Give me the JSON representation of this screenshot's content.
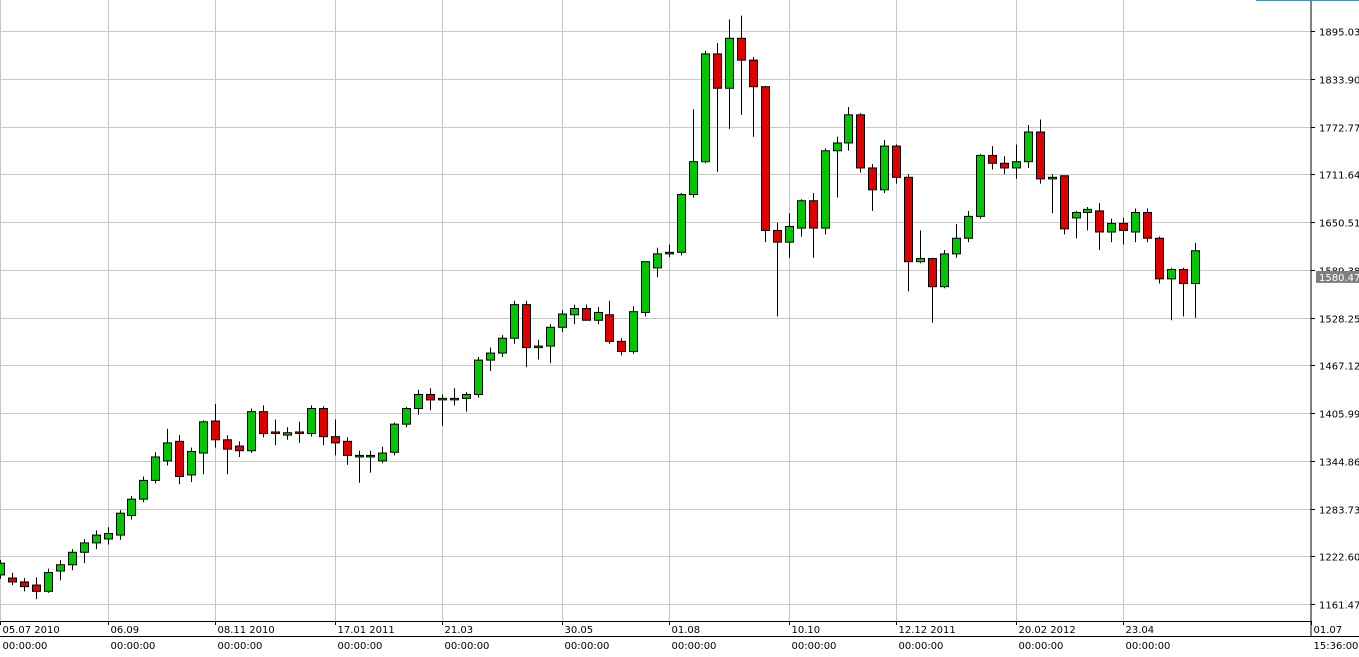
{
  "chart_data": {
    "type": "candlestick",
    "title": "",
    "xlabel": "",
    "ylabel": "",
    "ylim": [
      1140,
      1935
    ],
    "grid": true,
    "colors": {
      "up": "#00c800",
      "down": "#e00000",
      "wick": "#000000",
      "grid": "#c8c8c8",
      "badge": "#808080"
    },
    "current_price": "1580.47",
    "y_ticks": [
      {
        "value": 1161.47,
        "label": "1161.47"
      },
      {
        "value": 1222.6,
        "label": "1222.60"
      },
      {
        "value": 1283.73,
        "label": "1283.73"
      },
      {
        "value": 1344.86,
        "label": "1344.86"
      },
      {
        "value": 1405.99,
        "label": "1405.99"
      },
      {
        "value": 1467.12,
        "label": "1467.12"
      },
      {
        "value": 1528.25,
        "label": "1528.25"
      },
      {
        "value": 1589.38,
        "label": "1589.38"
      },
      {
        "value": 1650.51,
        "label": "1650.51"
      },
      {
        "value": 1711.64,
        "label": "1711.64"
      },
      {
        "value": 1772.77,
        "label": "1772.77"
      },
      {
        "value": 1833.9,
        "label": "1833.90"
      },
      {
        "value": 1895.03,
        "label": "1895.03"
      }
    ],
    "x_ticks": [
      {
        "index": 0,
        "date": "05.07 2010",
        "time": "00:00:00"
      },
      {
        "index": 9,
        "date": "06.09",
        "time": "00:00:00"
      },
      {
        "index": 18,
        "date": "08.11 2010",
        "time": "00:00:00"
      },
      {
        "index": 28,
        "date": "17.01 2011",
        "time": "00:00:00"
      },
      {
        "index": 37,
        "date": "21.03",
        "time": "00:00:00"
      },
      {
        "index": 47,
        "date": "30.05",
        "time": "00:00:00"
      },
      {
        "index": 56,
        "date": "01.08",
        "time": "00:00:00"
      },
      {
        "index": 66,
        "date": "10.10",
        "time": "00:00:00"
      },
      {
        "index": 75,
        "date": "12.12 2011",
        "time": "00:00:00"
      },
      {
        "index": 85,
        "date": "20.02 2012",
        "time": "00:00:00"
      },
      {
        "index": 94,
        "date": "23.04",
        "time": "00:00:00"
      },
      {
        "index": 104,
        "date": "01.07",
        "time": "15:36:00"
      }
    ],
    "candles": [
      [
        1199,
        1218,
        1194,
        1214
      ],
      [
        1195,
        1202,
        1186,
        1190
      ],
      [
        1190,
        1195,
        1178,
        1184
      ],
      [
        1186,
        1196,
        1168,
        1178
      ],
      [
        1178,
        1207,
        1176,
        1202
      ],
      [
        1204,
        1218,
        1192,
        1212
      ],
      [
        1212,
        1232,
        1205,
        1228
      ],
      [
        1228,
        1245,
        1214,
        1240
      ],
      [
        1240,
        1256,
        1232,
        1250
      ],
      [
        1245,
        1260,
        1238,
        1252
      ],
      [
        1250,
        1282,
        1244,
        1278
      ],
      [
        1275,
        1300,
        1270,
        1296
      ],
      [
        1296,
        1325,
        1292,
        1320
      ],
      [
        1320,
        1356,
        1316,
        1350
      ],
      [
        1345,
        1386,
        1339,
        1368
      ],
      [
        1370,
        1378,
        1315,
        1325
      ],
      [
        1327,
        1362,
        1318,
        1357
      ],
      [
        1355,
        1397,
        1328,
        1395
      ],
      [
        1396,
        1418,
        1362,
        1372
      ],
      [
        1372,
        1378,
        1328,
        1360
      ],
      [
        1364,
        1370,
        1350,
        1358
      ],
      [
        1358,
        1412,
        1355,
        1408
      ],
      [
        1408,
        1416,
        1375,
        1380
      ],
      [
        1382,
        1398,
        1365,
        1381
      ],
      [
        1378,
        1388,
        1372,
        1381
      ],
      [
        1382,
        1395,
        1368,
        1381
      ],
      [
        1380,
        1416,
        1376,
        1412
      ],
      [
        1412,
        1415,
        1365,
        1376
      ],
      [
        1376,
        1398,
        1352,
        1368
      ],
      [
        1370,
        1375,
        1340,
        1352
      ],
      [
        1351,
        1358,
        1317,
        1352
      ],
      [
        1351,
        1358,
        1330,
        1352
      ],
      [
        1345,
        1363,
        1342,
        1355
      ],
      [
        1356,
        1394,
        1352,
        1392
      ],
      [
        1392,
        1414,
        1388,
        1412
      ],
      [
        1412,
        1436,
        1404,
        1430
      ],
      [
        1430,
        1438,
        1410,
        1423
      ],
      [
        1425,
        1430,
        1390,
        1425
      ],
      [
        1425,
        1438,
        1416,
        1425
      ],
      [
        1425,
        1433,
        1408,
        1430
      ],
      [
        1430,
        1478,
        1426,
        1474
      ],
      [
        1474,
        1490,
        1460,
        1483
      ],
      [
        1483,
        1506,
        1478,
        1502
      ],
      [
        1502,
        1550,
        1495,
        1545
      ],
      [
        1545,
        1550,
        1465,
        1490
      ],
      [
        1490,
        1500,
        1475,
        1492
      ],
      [
        1492,
        1520,
        1470,
        1516
      ],
      [
        1516,
        1538,
        1510,
        1533
      ],
      [
        1532,
        1545,
        1520,
        1540
      ],
      [
        1540,
        1545,
        1525,
        1525
      ],
      [
        1525,
        1542,
        1520,
        1535
      ],
      [
        1532,
        1550,
        1495,
        1498
      ],
      [
        1498,
        1502,
        1480,
        1485
      ],
      [
        1485,
        1543,
        1482,
        1536
      ],
      [
        1535,
        1600,
        1530,
        1600
      ],
      [
        1592,
        1618,
        1580,
        1610
      ],
      [
        1610,
        1622,
        1606,
        1612
      ],
      [
        1612,
        1688,
        1608,
        1686
      ],
      [
        1686,
        1795,
        1682,
        1728
      ],
      [
        1728,
        1870,
        1726,
        1866
      ],
      [
        1866,
        1880,
        1715,
        1822
      ],
      [
        1822,
        1910,
        1770,
        1886
      ],
      [
        1886,
        1915,
        1788,
        1858
      ],
      [
        1858,
        1862,
        1760,
        1824
      ],
      [
        1824,
        1825,
        1625,
        1640
      ],
      [
        1640,
        1650,
        1530,
        1625
      ],
      [
        1625,
        1662,
        1605,
        1645
      ],
      [
        1643,
        1680,
        1632,
        1678
      ],
      [
        1678,
        1688,
        1605,
        1643
      ],
      [
        1643,
        1745,
        1635,
        1742
      ],
      [
        1742,
        1760,
        1682,
        1752
      ],
      [
        1752,
        1798,
        1742,
        1788
      ],
      [
        1788,
        1790,
        1714,
        1720
      ],
      [
        1720,
        1725,
        1665,
        1692
      ],
      [
        1692,
        1756,
        1688,
        1748
      ],
      [
        1748,
        1750,
        1700,
        1708
      ],
      [
        1708,
        1712,
        1562,
        1600
      ],
      [
        1600,
        1640,
        1598,
        1604
      ],
      [
        1604,
        1605,
        1522,
        1568
      ],
      [
        1568,
        1615,
        1566,
        1610
      ],
      [
        1610,
        1648,
        1605,
        1630
      ],
      [
        1630,
        1665,
        1625,
        1658
      ],
      [
        1658,
        1738,
        1655,
        1736
      ],
      [
        1736,
        1748,
        1718,
        1726
      ],
      [
        1726,
        1735,
        1712,
        1720
      ],
      [
        1720,
        1750,
        1706,
        1728
      ],
      [
        1728,
        1775,
        1720,
        1766
      ],
      [
        1766,
        1782,
        1700,
        1706
      ],
      [
        1706,
        1712,
        1662,
        1708
      ],
      [
        1710,
        1710,
        1635,
        1642
      ],
      [
        1656,
        1665,
        1630,
        1663
      ],
      [
        1663,
        1670,
        1640,
        1667
      ],
      [
        1665,
        1675,
        1615,
        1638
      ],
      [
        1638,
        1655,
        1625,
        1649
      ],
      [
        1649,
        1656,
        1622,
        1640
      ],
      [
        1638,
        1668,
        1625,
        1663
      ],
      [
        1663,
        1668,
        1625,
        1630
      ],
      [
        1630,
        1632,
        1572,
        1578
      ],
      [
        1578,
        1592,
        1525,
        1590
      ],
      [
        1590,
        1592,
        1530,
        1572
      ],
      [
        1572,
        1624,
        1528,
        1614
      ]
    ]
  }
}
